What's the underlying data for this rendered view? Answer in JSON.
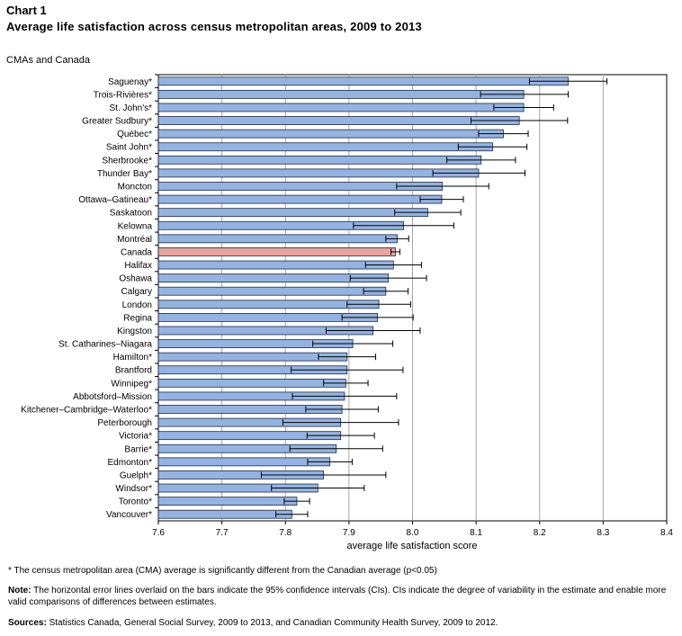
{
  "header": {
    "chart_number": "Chart 1",
    "title": "Average life satisfaction across census metropolitan areas, 2009 to 2013",
    "subtitle": "CMAs and Canada"
  },
  "colors": {
    "bar": "#95B3E0",
    "bar_border": "#1F2A44",
    "highlight_bar": "#E8A39C",
    "grid": "#A6A6A6",
    "error": "#000000"
  },
  "chart_data": {
    "type": "bar",
    "orientation": "horizontal",
    "xlabel": "average life satisfaction score",
    "xlim": [
      7.6,
      8.4
    ],
    "xticks": [
      "7.6",
      "7.7",
      "7.8",
      "7.9",
      "8.0",
      "8.1",
      "8.2",
      "8.3",
      "8.4"
    ],
    "grid": true,
    "highlight": "Canada",
    "categories": [
      "Saguenay*",
      "Trois-Rivières*",
      "St. John's*",
      "Greater Sudbury*",
      "Québec*",
      "Saint John*",
      "Sherbrooke*",
      "Thunder Bay*",
      "Moncton",
      "Ottawa–Gatineau*",
      "Saskatoon",
      "Kelowna",
      "Montréal",
      "Canada",
      "Halifax",
      "Oshawa",
      "Calgary",
      "London",
      "Regina",
      "Kingston",
      "St. Catharines–Niagara",
      "Hamilton*",
      "Brantford",
      "Winnipeg*",
      "Abbotsford–Mission",
      "Kitchener–Cambridge–Waterloo*",
      "Peterborough",
      "Victoria*",
      "Barrie*",
      "Edmonton*",
      "Guelph*",
      "Windsor*",
      "Toronto*",
      "Vancouver*"
    ],
    "values": [
      8.245,
      8.175,
      8.175,
      8.168,
      8.143,
      8.126,
      8.108,
      8.104,
      8.047,
      8.046,
      8.024,
      7.986,
      7.976,
      7.973,
      7.97,
      7.962,
      7.958,
      7.947,
      7.945,
      7.938,
      7.906,
      7.897,
      7.897,
      7.895,
      7.893,
      7.889,
      7.887,
      7.887,
      7.88,
      7.87,
      7.86,
      7.851,
      7.818,
      7.81
    ],
    "ci_low": [
      8.184,
      8.107,
      8.128,
      8.092,
      8.104,
      8.072,
      8.054,
      8.032,
      7.975,
      8.012,
      7.972,
      7.907,
      7.958,
      7.966,
      7.926,
      7.902,
      7.923,
      7.897,
      7.889,
      7.864,
      7.843,
      7.852,
      7.809,
      7.86,
      7.811,
      7.832,
      7.796,
      7.834,
      7.807,
      7.835,
      7.762,
      7.778,
      7.798,
      7.785
    ],
    "ci_high": [
      8.306,
      8.245,
      8.222,
      8.244,
      8.182,
      8.18,
      8.162,
      8.177,
      8.12,
      8.08,
      8.076,
      8.065,
      7.994,
      7.98,
      8.014,
      8.022,
      7.993,
      7.997,
      8.001,
      8.012,
      7.969,
      7.942,
      7.985,
      7.93,
      7.975,
      7.946,
      7.978,
      7.94,
      7.953,
      7.905,
      7.958,
      7.924,
      7.838,
      7.835
    ]
  },
  "footnotes": {
    "significance": "* The census metropolitan area (CMA) average is significantly different from the Canadian average (p<0.05)",
    "note_label": "Note:",
    "note_text": " The horizontal error lines overlaid on the bars indicate the 95% confidence intervals (CIs). CIs indicate the degree of variability in the estimate and enable more valid comparisons of differences between estimates.",
    "sources_label": "Sources:",
    "sources_text": " Statistics Canada, General Social Survey, 2009 to 2013, and Canadian Community Health Survey, 2009 to 2012."
  }
}
